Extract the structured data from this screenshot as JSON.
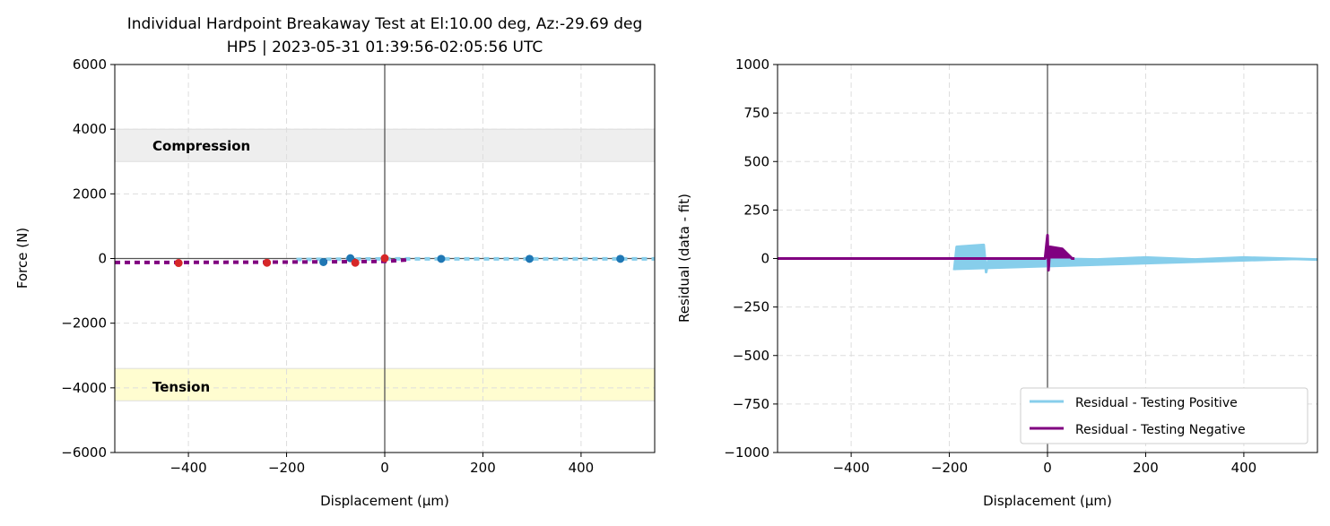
{
  "chart_data": [
    {
      "type": "line",
      "title": "Individual Hardpoint Breakaway Test at El:10.00 deg, Az:-29.69 deg",
      "subtitle": "HP5 | 2023-05-31 01:39:56-02:05:56 UTC",
      "xlabel": "Displacement (µm)",
      "ylabel": "Force (N)",
      "xlim": [
        -550,
        550
      ],
      "ylim": [
        -6000,
        6000
      ],
      "xticks": [
        "−400",
        "−200",
        "0",
        "200",
        "400"
      ],
      "xtick_values": [
        -400,
        -200,
        0,
        200,
        400
      ],
      "yticks": [
        "−6000",
        "−4000",
        "−2000",
        "0",
        "2000",
        "4000",
        "6000"
      ],
      "ytick_values": [
        -6000,
        -4000,
        -2000,
        0,
        2000,
        4000,
        6000
      ],
      "grid": true,
      "bands": [
        {
          "label": "Compression",
          "range": [
            3000,
            4000
          ],
          "color": "#eeeeee"
        },
        {
          "label": "Tension",
          "range": [
            -4400,
            -3400
          ],
          "color": "#fffdd0"
        }
      ],
      "series": [
        {
          "name": "Testing Positive",
          "color": "#87ceeb",
          "x": [
            -180,
            0,
            100,
            200,
            300,
            400,
            550
          ],
          "y": [
            -30,
            -10,
            -10,
            -10,
            -10,
            -10,
            -10
          ]
        },
        {
          "name": "Testing Negative",
          "color": "#800080",
          "x": [
            -550,
            -400,
            -200,
            -100,
            0,
            30,
            50
          ],
          "y": [
            -120,
            -120,
            -110,
            -100,
            -90,
            -60,
            -40
          ]
        }
      ],
      "points_positive": {
        "color": "#1f77b4",
        "x": [
          -125,
          -70,
          115,
          295,
          480
        ],
        "y": [
          -110,
          10,
          -10,
          -10,
          -10
        ]
      },
      "points_negative": {
        "color": "#d62728",
        "x": [
          -420,
          -240,
          -60,
          0
        ],
        "y": [
          -140,
          -130,
          -130,
          10
        ]
      }
    },
    {
      "type": "line",
      "xlabel": "Displacement (µm)",
      "ylabel": "Residual (data - fit)",
      "xlim": [
        -550,
        550
      ],
      "ylim": [
        -1000,
        1000
      ],
      "xticks": [
        "−400",
        "−200",
        "0",
        "200",
        "400"
      ],
      "xtick_values": [
        -400,
        -200,
        0,
        200,
        400
      ],
      "yticks": [
        "−1000",
        "−750",
        "−500",
        "−250",
        "0",
        "250",
        "500",
        "750",
        "1000"
      ],
      "ytick_values": [
        -1000,
        -750,
        -500,
        -250,
        0,
        250,
        500,
        750,
        1000
      ],
      "grid": true,
      "legend": "bottom-right",
      "series": [
        {
          "name": "Residual - Testing Positive",
          "color": "#87ceeb",
          "x": [
            -190,
            -185,
            -130,
            -125,
            -120,
            0,
            100,
            200,
            300,
            400,
            550
          ],
          "y": [
            -60,
            60,
            70,
            -70,
            0,
            0,
            -5,
            5,
            -5,
            5,
            -5
          ]
        },
        {
          "name": "Residual - Testing Negative",
          "color": "#800080",
          "x": [
            -550,
            -200,
            -5,
            0,
            2,
            5,
            30,
            50,
            55
          ],
          "y": [
            0,
            0,
            0,
            120,
            -60,
            60,
            50,
            0,
            0
          ]
        }
      ]
    }
  ]
}
